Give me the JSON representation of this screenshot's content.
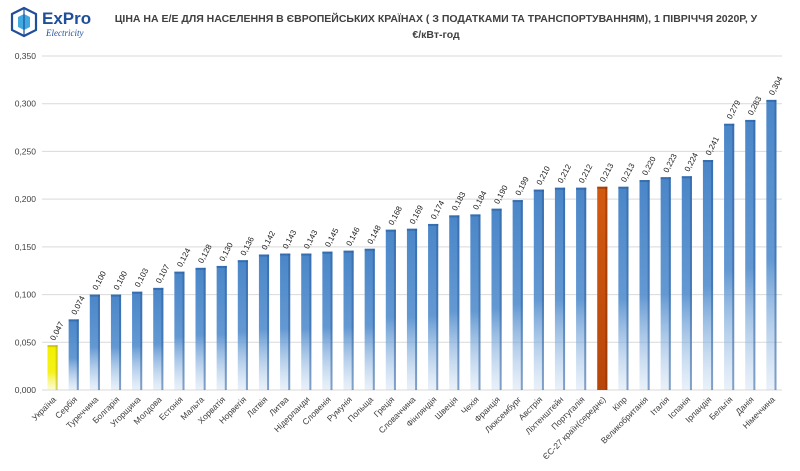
{
  "logo": {
    "brand": "ExPro",
    "sub": "Electricity"
  },
  "colors": {
    "default_bar": "#4a86c8",
    "default_bar_dark": "#2c5f9e",
    "highlight_first": "#f4f000",
    "highlight_first_dark": "#b8b400",
    "highlight_avg": "#c8500a",
    "highlight_avg_dark": "#8a3205",
    "grid": "#d9d9d9"
  },
  "chart_data": {
    "type": "bar",
    "title_line1": "ЦІНА НА Е/Е ДЛЯ НАСЕЛЕННЯ В ЄВРОПЕЙСЬКИХ КРАЇНАХ ( З ПОДАТКАМИ ТА ТРАНСПОРТУВАННЯМ), 1 ПІВРІЧЧЯ 2020Р, У",
    "title_line2": "€/кВт-год",
    "xlabel": "",
    "ylabel": "",
    "ylim": [
      0,
      0.35
    ],
    "yticks": [
      "0,000",
      "0,050",
      "0,100",
      "0,150",
      "0,200",
      "0,250",
      "0,300",
      "0,350"
    ],
    "grid": true,
    "categories": [
      "Україна",
      "Сербія",
      "Туреччина",
      "Болгарія",
      "Угорщина",
      "Молдова",
      "Естонія",
      "Мальта",
      "Хорватія",
      "Норвегія",
      "Латвія",
      "Литва",
      "Нідерланди",
      "Словенія",
      "Румунія",
      "Польща",
      "Греція",
      "Словаччина",
      "Фінляндія",
      "Швеція",
      "Чехія",
      "Франція",
      "Люксембург",
      "Австрія",
      "Ліхтенштейн",
      "Португалія",
      "ЄС-27 країн(середнє)",
      "Кіпр",
      "Великобританія",
      "Італія",
      "Іспанія",
      "Ірландія",
      "Бельгія",
      "Данія",
      "Німеччина"
    ],
    "values": [
      0.047,
      0.074,
      0.1,
      0.1,
      0.103,
      0.107,
      0.124,
      0.128,
      0.13,
      0.136,
      0.142,
      0.143,
      0.143,
      0.145,
      0.146,
      0.148,
      0.168,
      0.169,
      0.174,
      0.183,
      0.184,
      0.19,
      0.199,
      0.21,
      0.212,
      0.212,
      0.213,
      0.213,
      0.22,
      0.223,
      0.224,
      0.241,
      0.279,
      0.283,
      0.304
    ],
    "labels": [
      "0,047",
      "0,074",
      "0,100",
      "0,100",
      "0,103",
      "0,107",
      "0,124",
      "0,128",
      "0,130",
      "0,136",
      "0,142",
      "0,143",
      "0,143",
      "0,145",
      "0,146",
      "0,148",
      "0,168",
      "0,169",
      "0,174",
      "0,183",
      "0,184",
      "0,190",
      "0,199",
      "0,210",
      "0,212",
      "0,212",
      "0,213",
      "0,213",
      "0,220",
      "0,223",
      "0,224",
      "0,241",
      "0,279",
      "0,283",
      "0,304"
    ],
    "highlight_first_index": 0,
    "highlight_avg_index": 26
  }
}
